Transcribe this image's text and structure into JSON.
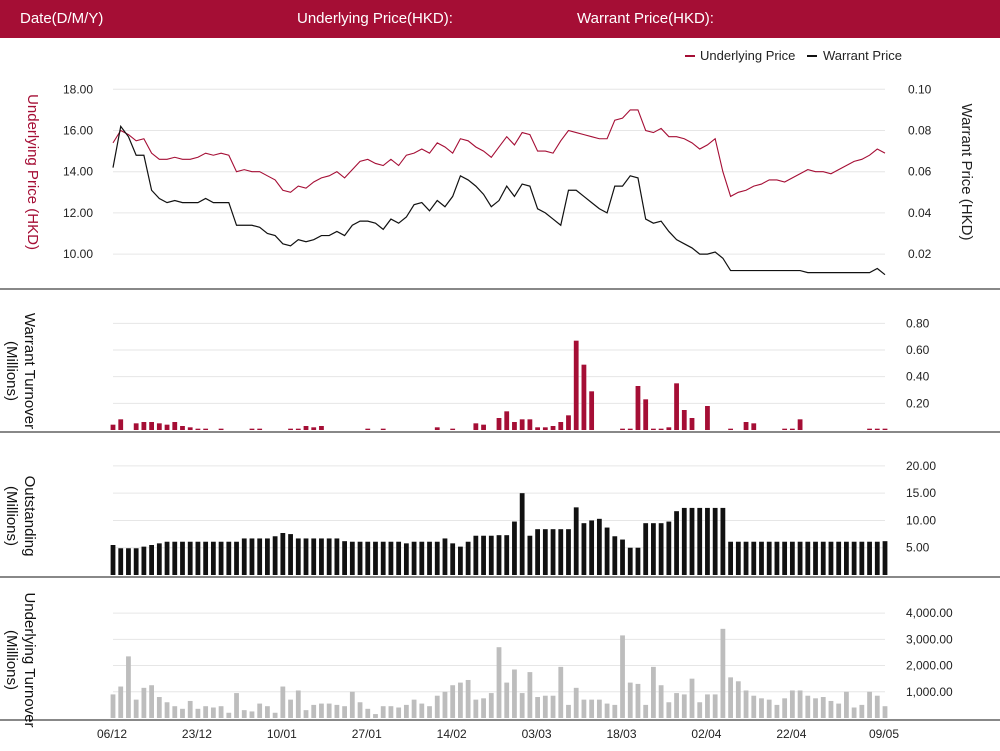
{
  "colors": {
    "header_bg": "#a50e35",
    "underlying": "#a50e35",
    "warrant": "#111111",
    "outstanding": "#111111",
    "underlying_turnover": "#bdbdbd",
    "grid": "#e6e6e6"
  },
  "header": {
    "date_label": "Date(D/M/Y)",
    "underlying_label": "Underlying Price(HKD):",
    "warrant_label": "Warrant Price(HKD):"
  },
  "chart_data": [
    {
      "type": "line",
      "legend": [
        "Underlying Price",
        "Warrant Price"
      ],
      "legend_position": "top-right",
      "ylabel_left": "Underlying Price (HKD)",
      "ylabel_right": "Warrant  Price (HKD)",
      "left_ticks": [
        "18.00",
        "16.00",
        "14.00",
        "12.00",
        "10.00"
      ],
      "right_ticks": [
        "0.10",
        "0.08",
        "0.06",
        "0.04",
        "0.02"
      ],
      "ylim_left": [
        8.5,
        18.5
      ],
      "ylim_right": [
        0.005,
        0.105
      ],
      "grid": true,
      "series": [
        {
          "name": "Underlying Price",
          "axis": "left",
          "values": [
            15.4,
            16.0,
            15.8,
            15.5,
            15.6,
            14.9,
            14.6,
            14.6,
            14.7,
            14.6,
            14.6,
            14.7,
            14.9,
            14.8,
            14.9,
            14.8,
            14.0,
            14.1,
            14.0,
            14.0,
            13.8,
            13.6,
            13.1,
            13.0,
            13.3,
            13.2,
            13.5,
            13.7,
            13.8,
            14.0,
            13.7,
            14.1,
            14.5,
            14.6,
            14.4,
            14.3,
            14.6,
            14.3,
            14.8,
            14.9,
            15.1,
            14.9,
            15.4,
            15.2,
            14.9,
            15.6,
            15.5,
            15.2,
            15.0,
            14.7,
            15.2,
            15.7,
            15.3,
            15.9,
            15.8,
            15.0,
            15.0,
            14.9,
            15.5,
            16.0,
            15.9,
            15.8,
            15.7,
            15.6,
            15.6,
            16.5,
            16.6,
            17.0,
            17.0,
            16.0,
            15.9,
            16.1,
            15.7,
            15.7,
            15.6,
            15.4,
            15.1,
            15.3,
            15.6,
            14.0,
            12.8,
            13.0,
            13.1,
            13.3,
            13.4,
            13.6,
            13.6,
            13.5,
            13.7,
            13.9,
            14.1,
            14.0,
            14.0,
            13.9,
            14.1,
            14.3,
            14.5,
            14.6,
            14.8,
            15.1,
            14.9
          ]
        },
        {
          "name": "Warrant Price",
          "axis": "right",
          "values": [
            0.062,
            0.082,
            0.077,
            0.068,
            0.068,
            0.051,
            0.047,
            0.045,
            0.046,
            0.045,
            0.045,
            0.045,
            0.047,
            0.045,
            0.045,
            0.045,
            0.034,
            0.034,
            0.034,
            0.033,
            0.03,
            0.029,
            0.025,
            0.024,
            0.027,
            0.026,
            0.027,
            0.029,
            0.029,
            0.031,
            0.029,
            0.034,
            0.036,
            0.036,
            0.035,
            0.032,
            0.037,
            0.035,
            0.038,
            0.044,
            0.045,
            0.041,
            0.046,
            0.043,
            0.048,
            0.058,
            0.056,
            0.053,
            0.049,
            0.043,
            0.046,
            0.053,
            0.048,
            0.054,
            0.053,
            0.042,
            0.04,
            0.037,
            0.034,
            0.051,
            0.051,
            0.048,
            0.045,
            0.042,
            0.04,
            0.053,
            0.053,
            0.058,
            0.057,
            0.037,
            0.035,
            0.036,
            0.031,
            0.027,
            0.025,
            0.023,
            0.02,
            0.02,
            0.021,
            0.018,
            0.012,
            0.012,
            0.012,
            0.012,
            0.012,
            0.012,
            0.012,
            0.012,
            0.012,
            0.012,
            0.011,
            0.011,
            0.011,
            0.011,
            0.011,
            0.011,
            0.011,
            0.011,
            0.011,
            0.013,
            0.01
          ]
        }
      ]
    },
    {
      "type": "bar",
      "ylabel": "Warrant  Turnover (Millions)",
      "ticks": [
        "0.80",
        "0.60",
        "0.40",
        "0.20"
      ],
      "ylim": [
        0,
        0.9
      ],
      "values": [
        0.04,
        0.08,
        0,
        0.05,
        0.06,
        0.06,
        0.05,
        0.04,
        0.06,
        0.03,
        0.02,
        0.01,
        0.01,
        0,
        0.01,
        0,
        0,
        0,
        0.01,
        0.01,
        0,
        0,
        0,
        0.01,
        0.01,
        0.03,
        0.02,
        0.03,
        0,
        0,
        0,
        0,
        0,
        0.01,
        0,
        0.01,
        0,
        0,
        0,
        0,
        0,
        0,
        0.02,
        0,
        0.01,
        0,
        0,
        0.05,
        0.04,
        0,
        0.09,
        0.14,
        0.06,
        0.08,
        0.08,
        0.02,
        0.02,
        0.03,
        0.06,
        0.11,
        0.67,
        0.49,
        0.29,
        0,
        0,
        0,
        0.01,
        0.01,
        0.33,
        0.23,
        0.01,
        0.01,
        0.02,
        0.35,
        0.15,
        0.09,
        0,
        0.18,
        0,
        0,
        0.01,
        0,
        0.06,
        0.05,
        0,
        0,
        0,
        0.01,
        0.01,
        0.08,
        0,
        0,
        0,
        0,
        0,
        0,
        0,
        0,
        0.01,
        0.01,
        0.01
      ],
      "grid": true
    },
    {
      "type": "bar",
      "ylabel": "Outstanding (Millions)",
      "ticks": [
        "20.00",
        "15.00",
        "10.00",
        "5.00"
      ],
      "ylim": [
        0,
        22
      ],
      "values": [
        5.5,
        4.9,
        4.9,
        4.9,
        5.2,
        5.5,
        5.8,
        6.1,
        6.1,
        6.1,
        6.1,
        6.1,
        6.1,
        6.1,
        6.1,
        6.1,
        6.1,
        6.7,
        6.7,
        6.7,
        6.7,
        7.1,
        7.7,
        7.5,
        6.7,
        6.7,
        6.7,
        6.7,
        6.7,
        6.7,
        6.2,
        6.1,
        6.1,
        6.1,
        6.1,
        6.1,
        6.1,
        6.1,
        5.8,
        6.1,
        6.1,
        6.1,
        6.1,
        6.7,
        5.8,
        5.2,
        6.1,
        7.2,
        7.2,
        7.2,
        7.3,
        7.3,
        9.8,
        15.0,
        7.2,
        8.4,
        8.4,
        8.4,
        8.4,
        8.4,
        12.4,
        9.5,
        10.0,
        10.3,
        8.7,
        7.1,
        6.5,
        5.0,
        5.0,
        9.5,
        9.5,
        9.5,
        9.8,
        11.7,
        12.3,
        12.3,
        12.3,
        12.3,
        12.3,
        12.3,
        6.1,
        6.1,
        6.1,
        6.1,
        6.1,
        6.1,
        6.1,
        6.1,
        6.1,
        6.1,
        6.1,
        6.1,
        6.1,
        6.1,
        6.1,
        6.1,
        6.1,
        6.1,
        6.1,
        6.1,
        6.2
      ],
      "grid": true
    },
    {
      "type": "bar",
      "ylabel": "Underlying Turnover (Millions)",
      "ticks": [
        "4,000.00",
        "3,000.00",
        "2,000.00",
        "1,000.00"
      ],
      "ylim": [
        0,
        4500
      ],
      "values": [
        900,
        1200,
        2350,
        700,
        1150,
        1250,
        800,
        600,
        450,
        350,
        650,
        350,
        450,
        400,
        450,
        200,
        950,
        300,
        250,
        550,
        450,
        200,
        1200,
        700,
        1050,
        300,
        500,
        550,
        550,
        500,
        450,
        1000,
        600,
        350,
        150,
        450,
        450,
        400,
        500,
        700,
        550,
        450,
        850,
        1000,
        1250,
        1350,
        1450,
        700,
        750,
        950,
        2700,
        1350,
        1850,
        950,
        1750,
        800,
        850,
        850,
        1950,
        500,
        1150,
        700,
        700,
        700,
        550,
        500,
        3150,
        1350,
        1300,
        500,
        1950,
        1250,
        600,
        950,
        900,
        1500,
        600,
        900,
        900,
        3400,
        1550,
        1400,
        1050,
        850,
        750,
        700,
        500,
        750,
        1050,
        1050,
        850,
        750,
        800,
        650,
        550,
        1000,
        400,
        500,
        1000,
        850,
        450
      ],
      "grid": true
    }
  ],
  "x_axis": {
    "tick_labels": [
      "06/12",
      "23/12",
      "10/01",
      "27/01",
      "14/02",
      "03/03",
      "18/03",
      "02/04",
      "22/04",
      "09/05"
    ],
    "tick_index": [
      0,
      11,
      22,
      33,
      44,
      55,
      66,
      77,
      88,
      100
    ]
  }
}
